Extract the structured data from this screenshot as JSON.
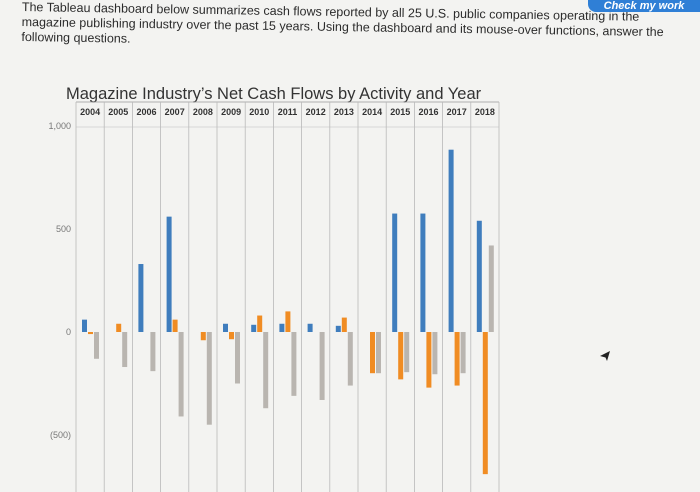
{
  "header": {
    "check_button_label": "Check my work",
    "instructions": "The Tableau dashboard below summarizes cash flows reported by all 25 U.S. public companies operating in the magazine publishing industry over the past 15 years. Using the dashboard and its mouse-over functions, answer the following questions."
  },
  "chart_data": {
    "type": "bar",
    "title": "Magazine Industry’s Net Cash Flows by Activity and Year",
    "xlabel": "",
    "ylabel": "",
    "categories": [
      "2004",
      "2005",
      "2006",
      "2007",
      "2008",
      "2009",
      "2010",
      "2011",
      "2012",
      "2013",
      "2014",
      "2015",
      "2016",
      "2017",
      "2018"
    ],
    "y_ticks": [
      {
        "value": 1000,
        "label": "1,000"
      },
      {
        "value": 500,
        "label": "500"
      },
      {
        "value": 0,
        "label": "0"
      },
      {
        "value": -500,
        "label": "(500)"
      }
    ],
    "ylim": [
      -700,
      1000
    ],
    "series": [
      {
        "color": "#3f7dbd",
        "values": [
          60,
          0,
          330,
          560,
          0,
          40,
          35,
          40,
          40,
          30,
          0,
          575,
          575,
          885,
          540
        ]
      },
      {
        "color": "#f08c23",
        "values": [
          -10,
          40,
          0,
          60,
          -40,
          -35,
          80,
          100,
          0,
          70,
          -200,
          -230,
          -270,
          -260,
          -690
        ]
      },
      {
        "color": "#b9b5b0",
        "values": [
          -130,
          -170,
          -190,
          -410,
          -450,
          -250,
          -370,
          -310,
          -330,
          -260,
          -200,
          -195,
          -205,
          -200,
          420
        ]
      }
    ],
    "legend": "none",
    "grid": false
  }
}
